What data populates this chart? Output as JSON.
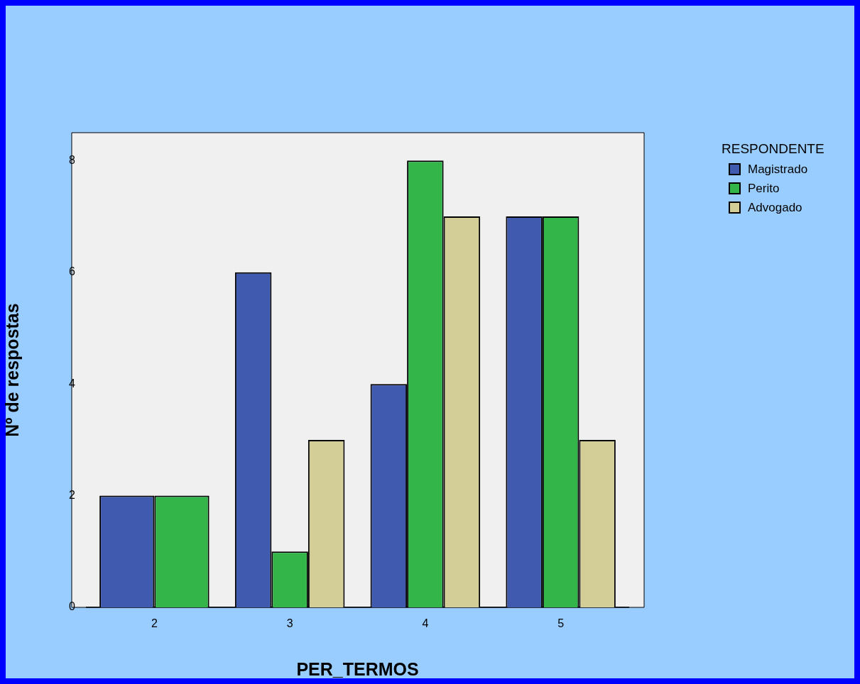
{
  "chart_data": {
    "type": "bar",
    "xlabel": "PER_TERMOS",
    "ylabel": "Nº de respostas",
    "legend_title": "RESPONDENTE",
    "legend": "top right",
    "grid": false,
    "categories": [
      "2",
      "3",
      "4",
      "5"
    ],
    "series": [
      {
        "name": "Magistrado",
        "color": "#3f5aae",
        "values": [
          2,
          6,
          4,
          7
        ]
      },
      {
        "name": "Perito",
        "color": "#33b54a",
        "values": [
          2,
          1,
          8,
          7
        ]
      },
      {
        "name": "Advogado",
        "color": "#d3ce98",
        "values": [
          null,
          3,
          7,
          3
        ]
      }
    ],
    "ylim": [
      0,
      8.5
    ],
    "yticks": [
      0,
      2,
      4,
      6,
      8
    ]
  }
}
